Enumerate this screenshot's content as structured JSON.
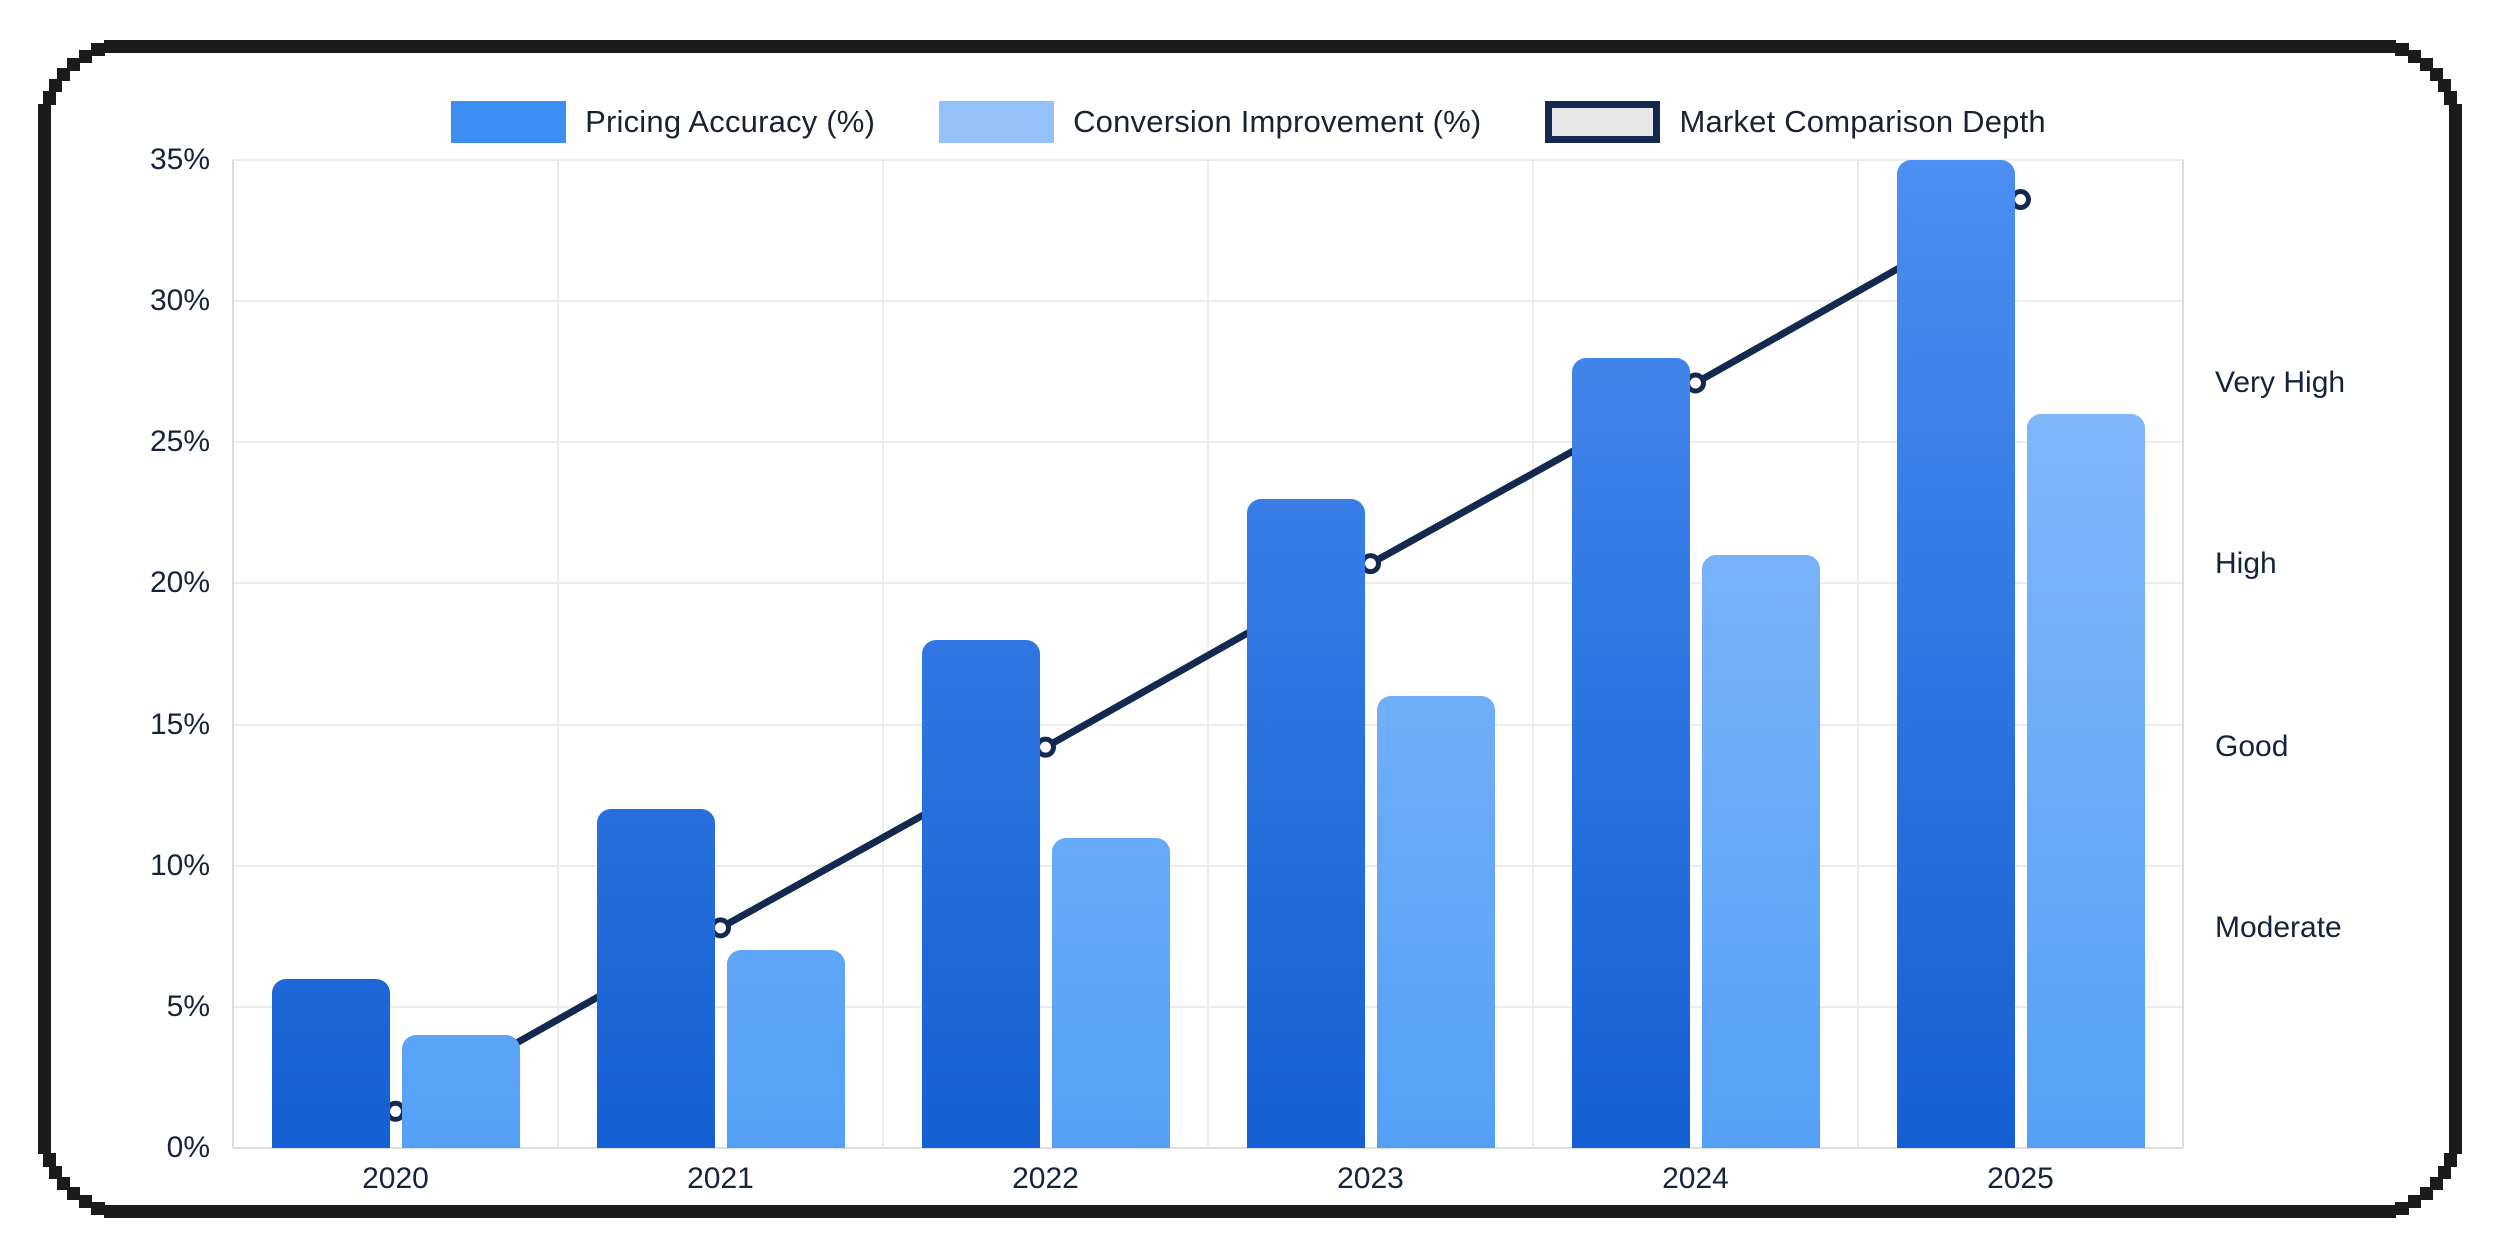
{
  "legend": {
    "items": [
      {
        "label": "Pricing Accuracy (%)",
        "swatch_style": "solid",
        "swatch_color": "#3d8ef2"
      },
      {
        "label": "Conversion Improvement (%)",
        "swatch_style": "solid",
        "swatch_color": "#93c1f8"
      },
      {
        "label": "Market Comparison Depth",
        "swatch_style": "outlined",
        "swatch_color": "#e8e8e8",
        "swatch_border": "#13294f"
      }
    ]
  },
  "chart_data": {
    "type": "bar",
    "subtype": "grouped bars with overlay line",
    "categories": [
      "2020",
      "2021",
      "2022",
      "2023",
      "2024",
      "2025"
    ],
    "series": [
      {
        "name": "Pricing Accuracy (%)",
        "type": "bar",
        "color_top": "#4c8ef1",
        "color_bottom": "#145fd3",
        "values": [
          6,
          12,
          18,
          23,
          28,
          35
        ]
      },
      {
        "name": "Conversion Improvement (%)",
        "type": "bar",
        "color_top": "#8fbffa",
        "color_bottom": "#55a0f7",
        "values": [
          4,
          7,
          11,
          16,
          21,
          26
        ]
      },
      {
        "name": "Market Comparison Depth",
        "type": "line",
        "axis": "right",
        "color": "#13294f",
        "marker": "open-circle",
        "values_left_axis_pct": [
          1.3,
          7.8,
          14.2,
          20.7,
          27.1,
          33.6
        ],
        "depth_labels_aligned": [
          "",
          "Moderate",
          "Good",
          "High",
          "Very High",
          ""
        ]
      }
    ],
    "left_axis": {
      "ticks": [
        "0%",
        "5%",
        "10%",
        "15%",
        "20%",
        "25%",
        "30%",
        "35%"
      ],
      "min": 0,
      "max": 35,
      "grid": true
    },
    "right_axis": {
      "ticks": [
        {
          "label": "Very High",
          "at_pct": 27.1
        },
        {
          "label": "High",
          "at_pct": 20.7
        },
        {
          "label": "Good",
          "at_pct": 14.2
        },
        {
          "label": "Moderate",
          "at_pct": 7.8
        }
      ]
    },
    "x_axis": {
      "ticks": [
        "2020",
        "2021",
        "2022",
        "2023",
        "2024",
        "2025"
      ],
      "grid": true
    },
    "legend_position": "top",
    "colors": {
      "line": "#13294f",
      "grid": "#ececec",
      "axis_text": "#16233d",
      "frame": "#1b1b1b",
      "background": "#ffffff"
    }
  }
}
